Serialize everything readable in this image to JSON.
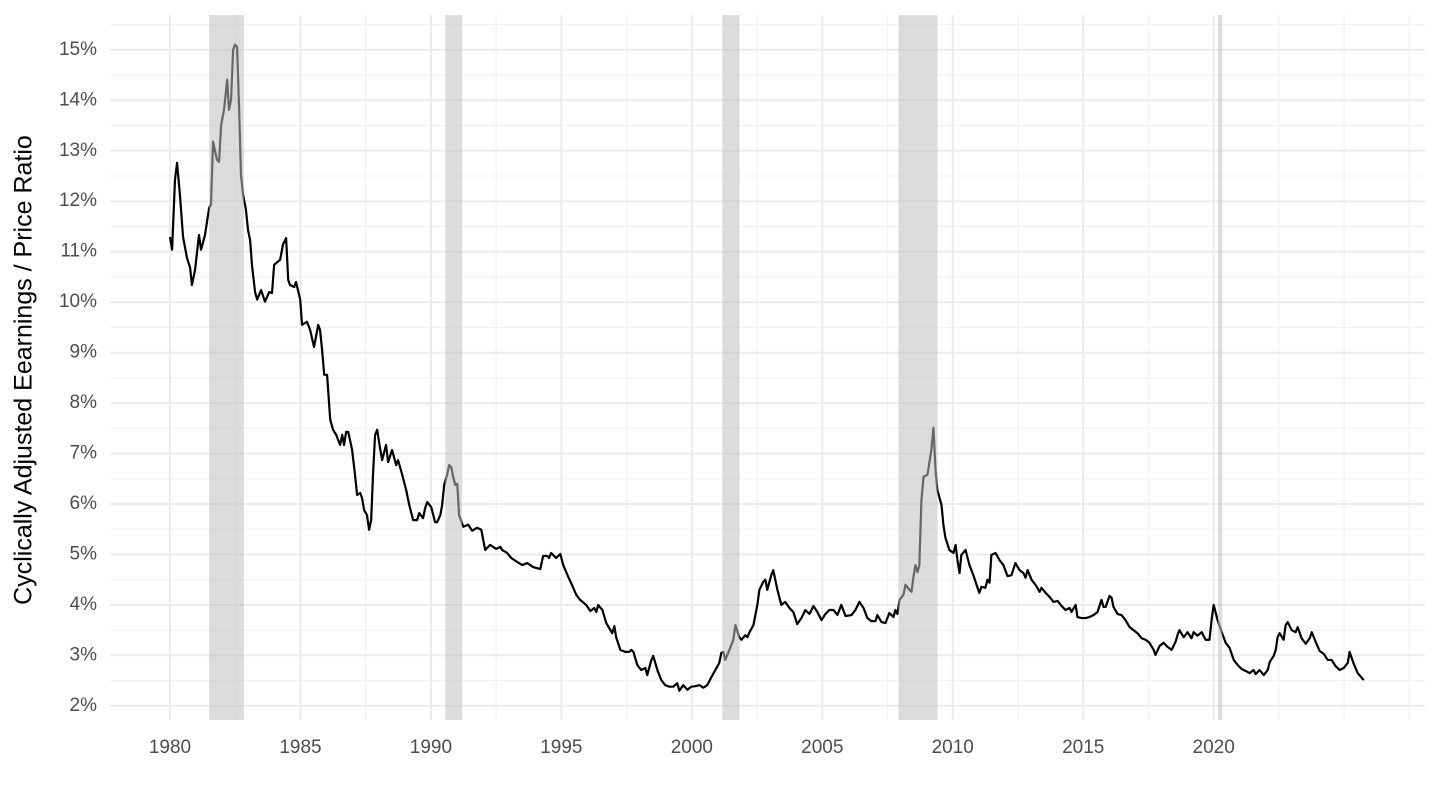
{
  "chart_data": {
    "type": "line",
    "y_label": "Cyclically Adjusted Eearnings / Price Ratio",
    "xlim": [
      1977.7,
      2028.1
    ],
    "ylim": [
      1.72,
      15.69
    ],
    "xticks": [
      1980,
      1985,
      1990,
      1995,
      2000,
      2005,
      2010,
      2015,
      2020
    ],
    "x_minor_grid": [
      1982.5,
      1987.5,
      1992.5,
      1997.5,
      2002.5,
      2007.5,
      2012.5,
      2017.5,
      2022.5,
      2025,
      2027.5
    ],
    "yticks": [
      {
        "value": 2,
        "label": "2%"
      },
      {
        "value": 3,
        "label": "3%"
      },
      {
        "value": 4,
        "label": "4%"
      },
      {
        "value": 5,
        "label": "5%"
      },
      {
        "value": 6,
        "label": "6%"
      },
      {
        "value": 7,
        "label": "7%"
      },
      {
        "value": 8,
        "label": "8%"
      },
      {
        "value": 9,
        "label": "9%"
      },
      {
        "value": 10,
        "label": "10%"
      },
      {
        "value": 11,
        "label": "11%"
      },
      {
        "value": 12,
        "label": "12%"
      },
      {
        "value": 13,
        "label": "13%"
      },
      {
        "value": 14,
        "label": "14%"
      },
      {
        "value": 15,
        "label": "15%"
      }
    ],
    "y_minor_grid": [
      2.5,
      3.5,
      4.5,
      5.5,
      6.5,
      7.5,
      8.5,
      9.5,
      10.5,
      11.5,
      12.5,
      13.5,
      14.5,
      15.5
    ],
    "grid": true,
    "shaded_periods": [
      [
        1981.5,
        1982.83
      ],
      [
        1990.55,
        1991.2
      ],
      [
        2001.17,
        2001.83
      ],
      [
        2007.92,
        2009.42
      ],
      [
        2020.17,
        2020.33
      ]
    ],
    "x": [
      1980.0,
      1980.08,
      1980.19,
      1980.27,
      1980.38,
      1980.5,
      1980.65,
      1980.77,
      1980.84,
      1980.96,
      1981.11,
      1981.19,
      1981.34,
      1981.5,
      1981.57,
      1981.65,
      1981.8,
      1981.88,
      1981.96,
      1982.07,
      1982.19,
      1982.26,
      1982.34,
      1982.42,
      1982.49,
      1982.57,
      1982.65,
      1982.72,
      1982.8,
      1982.91,
      1982.99,
      1983.07,
      1983.14,
      1983.26,
      1983.34,
      1983.49,
      1983.64,
      1983.8,
      1983.91,
      1983.99,
      1984.22,
      1984.33,
      1984.45,
      1984.53,
      1984.6,
      1984.76,
      1984.83,
      1984.99,
      1985.06,
      1985.25,
      1985.37,
      1985.52,
      1985.68,
      1985.75,
      1985.83,
      1985.91,
      1986.02,
      1986.14,
      1986.25,
      1986.37,
      1986.52,
      1986.6,
      1986.67,
      1986.75,
      1986.83,
      1986.98,
      1987.09,
      1987.17,
      1987.29,
      1987.36,
      1987.44,
      1987.55,
      1987.63,
      1987.71,
      1987.78,
      1987.86,
      1987.94,
      1988.05,
      1988.13,
      1988.28,
      1988.36,
      1988.51,
      1988.67,
      1988.74,
      1988.9,
      1989.05,
      1989.17,
      1989.32,
      1989.47,
      1989.55,
      1989.7,
      1989.78,
      1989.86,
      1990.01,
      1990.16,
      1990.24,
      1990.36,
      1990.43,
      1990.51,
      1990.62,
      1990.7,
      1990.78,
      1990.85,
      1990.93,
      1991.01,
      1991.08,
      1991.24,
      1991.43,
      1991.58,
      1991.77,
      1991.93,
      1992.08,
      1992.27,
      1992.5,
      1992.66,
      1992.73,
      1992.92,
      1993.08,
      1993.31,
      1993.5,
      1993.69,
      1993.92,
      1994.19,
      1994.3,
      1994.46,
      1994.53,
      1994.61,
      1994.8,
      1994.96,
      1995.07,
      1995.26,
      1995.42,
      1995.57,
      1995.72,
      1995.95,
      1996.11,
      1996.26,
      1996.34,
      1996.41,
      1996.57,
      1996.72,
      1996.87,
      1996.95,
      1997.03,
      1997.1,
      1997.26,
      1997.45,
      1997.6,
      1997.68,
      1997.76,
      1997.91,
      1998.06,
      1998.22,
      1998.29,
      1998.45,
      1998.52,
      1998.68,
      1998.83,
      1998.98,
      1999.14,
      1999.29,
      1999.44,
      1999.52,
      1999.67,
      1999.83,
      1999.98,
      2000.13,
      2000.29,
      2000.44,
      2000.59,
      2000.75,
      2000.9,
      2001.05,
      2001.13,
      2001.21,
      2001.28,
      2001.44,
      2001.59,
      2001.67,
      2001.82,
      2001.9,
      2002.05,
      2002.13,
      2002.21,
      2002.36,
      2002.51,
      2002.59,
      2002.74,
      2002.82,
      2002.89,
      2003.05,
      2003.12,
      2003.28,
      2003.43,
      2003.58,
      2003.74,
      2003.89,
      2004.04,
      2004.2,
      2004.35,
      2004.51,
      2004.66,
      2004.81,
      2004.97,
      2005.12,
      2005.27,
      2005.43,
      2005.58,
      2005.73,
      2005.89,
      2006.12,
      2006.27,
      2006.42,
      2006.58,
      2006.73,
      2006.88,
      2007.04,
      2007.11,
      2007.27,
      2007.42,
      2007.57,
      2007.73,
      2007.8,
      2007.88,
      2007.96,
      2008.11,
      2008.19,
      2008.34,
      2008.42,
      2008.49,
      2008.57,
      2008.65,
      2008.72,
      2008.8,
      2008.88,
      2009.03,
      2009.18,
      2009.26,
      2009.34,
      2009.41,
      2009.57,
      2009.64,
      2009.72,
      2009.87,
      2010.03,
      2010.11,
      2010.18,
      2010.26,
      2010.33,
      2010.49,
      2010.64,
      2010.79,
      2010.95,
      2011.02,
      2011.1,
      2011.25,
      2011.33,
      2011.41,
      2011.48,
      2011.64,
      2011.79,
      2011.94,
      2012.1,
      2012.25,
      2012.4,
      2012.56,
      2012.71,
      2012.79,
      2012.87,
      2013.02,
      2013.17,
      2013.33,
      2013.4,
      2013.56,
      2013.71,
      2013.86,
      2014.02,
      2014.17,
      2014.32,
      2014.48,
      2014.55,
      2014.71,
      2014.78,
      2014.94,
      2015.09,
      2015.24,
      2015.4,
      2015.55,
      2015.7,
      2015.78,
      2015.86,
      2016.01,
      2016.09,
      2016.16,
      2016.32,
      2016.47,
      2016.62,
      2016.78,
      2016.93,
      2017.08,
      2017.24,
      2017.39,
      2017.54,
      2017.7,
      2017.77,
      2017.93,
      2018.08,
      2018.23,
      2018.39,
      2018.54,
      2018.62,
      2018.69,
      2018.85,
      2019.0,
      2019.15,
      2019.23,
      2019.38,
      2019.54,
      2019.69,
      2019.84,
      2019.92,
      2020.0,
      2020.15,
      2020.31,
      2020.46,
      2020.61,
      2020.77,
      2020.92,
      2021.07,
      2021.23,
      2021.38,
      2021.53,
      2021.61,
      2021.76,
      2021.92,
      2022.07,
      2022.15,
      2022.3,
      2022.38,
      2022.45,
      2022.53,
      2022.68,
      2022.76,
      2022.84,
      2022.99,
      2023.14,
      2023.22,
      2023.37,
      2023.53,
      2023.68,
      2023.76,
      2023.91,
      2024.06,
      2024.22,
      2024.37,
      2024.52,
      2024.67,
      2024.83,
      2024.98,
      2025.14,
      2025.21,
      2025.37,
      2025.52,
      2025.75
    ],
    "series": [
      {
        "color": "#000000",
        "values": [
          11.29,
          11.04,
          12.42,
          12.76,
          12.13,
          11.29,
          10.88,
          10.68,
          10.34,
          10.64,
          11.33,
          11.04,
          11.33,
          11.87,
          11.93,
          13.18,
          12.82,
          12.78,
          13.51,
          13.81,
          14.41,
          13.81,
          14.01,
          15.0,
          15.1,
          15.06,
          13.81,
          12.52,
          12.13,
          11.83,
          11.43,
          11.23,
          10.74,
          10.2,
          10.05,
          10.24,
          10.01,
          10.2,
          10.18,
          10.74,
          10.84,
          11.14,
          11.27,
          10.44,
          10.34,
          10.3,
          10.4,
          10.05,
          9.55,
          9.61,
          9.45,
          9.11,
          9.55,
          9.45,
          9.05,
          8.56,
          8.56,
          7.67,
          7.47,
          7.37,
          7.17,
          7.37,
          7.17,
          7.43,
          7.43,
          7.07,
          6.58,
          6.18,
          6.22,
          6.12,
          5.88,
          5.78,
          5.49,
          5.68,
          6.58,
          7.37,
          7.47,
          7.11,
          6.87,
          7.17,
          6.83,
          7.07,
          6.77,
          6.87,
          6.58,
          6.28,
          5.98,
          5.68,
          5.68,
          5.82,
          5.72,
          5.92,
          6.04,
          5.94,
          5.64,
          5.64,
          5.78,
          5.98,
          6.38,
          6.58,
          6.77,
          6.73,
          6.54,
          6.38,
          6.4,
          5.78,
          5.55,
          5.59,
          5.47,
          5.53,
          5.49,
          5.09,
          5.19,
          5.11,
          5.15,
          5.09,
          5.03,
          4.93,
          4.85,
          4.79,
          4.83,
          4.75,
          4.71,
          4.97,
          4.97,
          4.93,
          5.03,
          4.93,
          5.01,
          4.79,
          4.56,
          4.38,
          4.2,
          4.1,
          4.0,
          3.88,
          3.94,
          3.86,
          4.0,
          3.9,
          3.64,
          3.51,
          3.44,
          3.58,
          3.36,
          3.11,
          3.07,
          3.07,
          3.11,
          3.07,
          2.81,
          2.71,
          2.75,
          2.61,
          2.91,
          2.99,
          2.71,
          2.51,
          2.41,
          2.38,
          2.38,
          2.45,
          2.3,
          2.41,
          2.32,
          2.38,
          2.39,
          2.41,
          2.36,
          2.41,
          2.57,
          2.71,
          2.85,
          3.05,
          3.07,
          2.91,
          3.11,
          3.31,
          3.6,
          3.36,
          3.31,
          3.4,
          3.36,
          3.46,
          3.6,
          4.0,
          4.3,
          4.46,
          4.5,
          4.3,
          4.6,
          4.69,
          4.3,
          4.0,
          4.06,
          3.94,
          3.86,
          3.62,
          3.74,
          3.9,
          3.82,
          3.98,
          3.86,
          3.7,
          3.82,
          3.9,
          3.9,
          3.8,
          4.0,
          3.78,
          3.8,
          3.9,
          4.06,
          3.94,
          3.74,
          3.68,
          3.68,
          3.8,
          3.66,
          3.64,
          3.84,
          3.76,
          3.9,
          3.82,
          4.1,
          4.2,
          4.4,
          4.3,
          4.26,
          4.54,
          4.79,
          4.65,
          4.79,
          6.08,
          6.54,
          6.58,
          7.07,
          7.51,
          6.68,
          6.28,
          5.98,
          5.59,
          5.33,
          5.09,
          5.03,
          5.19,
          4.89,
          4.63,
          4.99,
          5.09,
          4.79,
          4.59,
          4.34,
          4.24,
          4.36,
          4.34,
          4.5,
          4.44,
          4.99,
          5.03,
          4.89,
          4.79,
          4.57,
          4.59,
          4.83,
          4.69,
          4.63,
          4.54,
          4.69,
          4.5,
          4.4,
          4.26,
          4.34,
          4.24,
          4.16,
          4.06,
          4.08,
          3.98,
          3.9,
          3.94,
          3.86,
          4.0,
          3.76,
          3.74,
          3.74,
          3.76,
          3.8,
          3.86,
          4.1,
          3.96,
          3.96,
          4.18,
          4.14,
          3.96,
          3.82,
          3.8,
          3.7,
          3.56,
          3.5,
          3.44,
          3.34,
          3.31,
          3.25,
          3.11,
          3.01,
          3.19,
          3.25,
          3.17,
          3.11,
          3.27,
          3.41,
          3.5,
          3.36,
          3.46,
          3.34,
          3.46,
          3.39,
          3.46,
          3.31,
          3.31,
          3.7,
          4.0,
          3.7,
          3.46,
          3.25,
          3.15,
          2.91,
          2.81,
          2.73,
          2.69,
          2.65,
          2.71,
          2.63,
          2.71,
          2.61,
          2.71,
          2.87,
          2.99,
          3.11,
          3.36,
          3.44,
          3.31,
          3.6,
          3.66,
          3.5,
          3.46,
          3.56,
          3.34,
          3.23,
          3.34,
          3.46,
          3.27,
          3.09,
          3.03,
          2.91,
          2.91,
          2.79,
          2.71,
          2.75,
          2.85,
          3.07,
          2.83,
          2.65,
          2.51
        ]
      }
    ]
  }
}
